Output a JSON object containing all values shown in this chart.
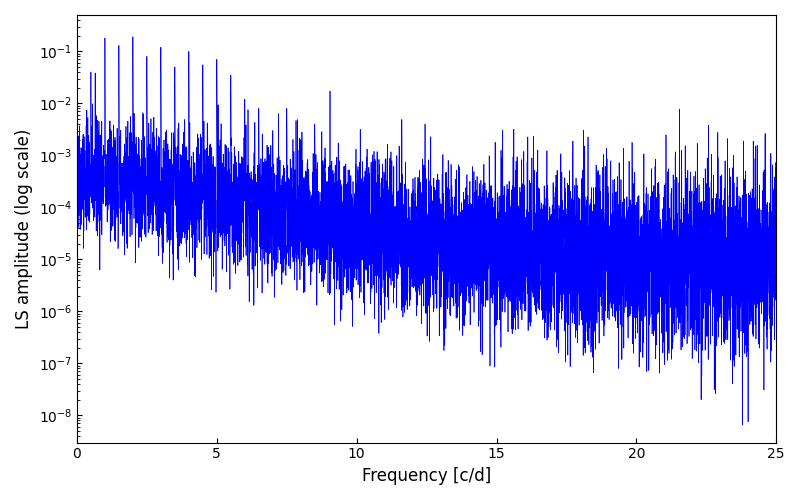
{
  "xlabel": "Frequency [c/d]",
  "ylabel": "LS amplitude (log scale)",
  "xlim": [
    0,
    25
  ],
  "ylim": [
    3e-09,
    0.5
  ],
  "line_color": "#0000ff",
  "line_width": 0.5,
  "background_color": "#ffffff",
  "figsize": [
    8.0,
    5.0
  ],
  "dpi": 100,
  "seed": 42,
  "n_points": 8000,
  "freq_max": 25.0,
  "peak_freqs": [
    0.5,
    1.0,
    1.5,
    2.0,
    2.5,
    3.0,
    3.5,
    4.0,
    4.5,
    5.0,
    5.5,
    6.0,
    6.5,
    7.0,
    7.5,
    8.0,
    8.5,
    9.0,
    10.0
  ],
  "peak_heights": [
    0.04,
    0.18,
    0.13,
    0.19,
    0.08,
    0.12,
    0.05,
    0.1,
    0.055,
    0.07,
    0.035,
    0.012,
    0.008,
    0.003,
    0.008,
    0.002,
    0.004,
    0.0006,
    0.0002
  ],
  "xlabel_fontsize": 12,
  "ylabel_fontsize": 12
}
